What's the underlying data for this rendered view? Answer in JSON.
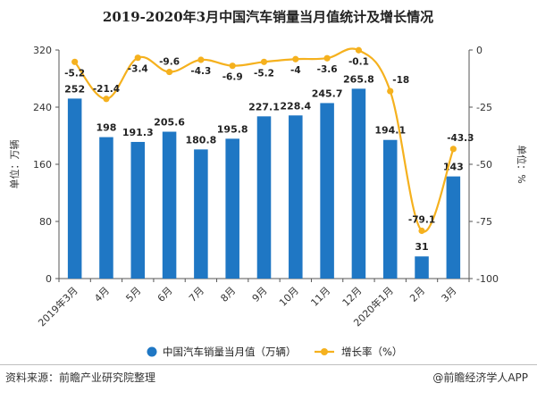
{
  "chart_data": {
    "type": "bar+line",
    "title": "2019-2020年3月中国汽车销量当月值统计及增长情况",
    "categories": [
      "2019年3月",
      "4月",
      "5月",
      "6月",
      "7月",
      "8月",
      "9月",
      "10月",
      "11月",
      "12月",
      "2020年1月",
      "2月",
      "3月"
    ],
    "series": [
      {
        "name": "中国汽车销量当月值（万辆）",
        "type": "bar",
        "axis": "left",
        "color": "#1f77c4",
        "values": [
          252,
          198,
          191.3,
          205.6,
          180.8,
          195.8,
          227.1,
          228.4,
          245.7,
          265.8,
          194.1,
          31,
          143
        ],
        "labels": [
          "252",
          "198",
          "191.3",
          "205.6",
          "180.8",
          "195.8",
          "227.1",
          "228.4",
          "245.7",
          "265.8",
          "194.1",
          "31",
          "143"
        ]
      },
      {
        "name": "增长率（%）",
        "type": "line",
        "axis": "right",
        "color": "#f5b11e",
        "values": [
          -5.2,
          -21.4,
          -3.4,
          -9.6,
          -4.3,
          -6.9,
          -5.2,
          -4,
          -3.6,
          -0.1,
          -18,
          -79.1,
          -43.3
        ],
        "labels": [
          "-5.2",
          "-21.4",
          "-3.4",
          "-9.6",
          "-4.3",
          "-6.9",
          "-5.2",
          "-4",
          "-3.6",
          "-0.1",
          "-18",
          "-79.1",
          "-43.3"
        ]
      }
    ],
    "ylabel_left": "单位：万辆",
    "ylabel_right": "单位：%",
    "ylim_left": [
      0,
      320
    ],
    "yticks_left": [
      "0",
      "80",
      "160",
      "240",
      "320"
    ],
    "ylim_right": [
      -100,
      0
    ],
    "yticks_right": [
      "-100",
      "-75",
      "-50",
      "-25",
      "0"
    ],
    "grid": false,
    "legend_position": "bottom"
  },
  "footer": {
    "source": "资料来源：前瞻产业研究院整理",
    "brand": "@前瞻经济学人APP"
  }
}
